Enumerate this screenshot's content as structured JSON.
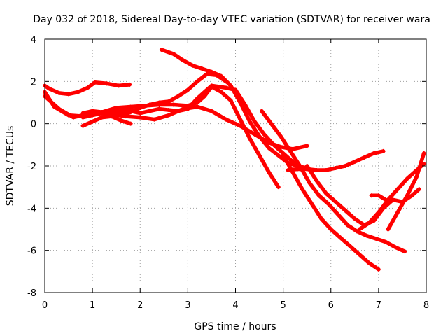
{
  "chart_data": {
    "type": "scatter",
    "title": "Day 032 of 2018, Sidereal Day-to-day VTEC variation (SDTVAR) for receiver wara",
    "xlabel": "GPS time / hours",
    "ylabel": "SDTVAR / TECUs",
    "xlim": [
      0,
      8
    ],
    "ylim": [
      -8,
      4
    ],
    "xticks": [
      "0",
      "1",
      "2",
      "3",
      "4",
      "5",
      "6",
      "7",
      "8"
    ],
    "yticks": [
      "-8",
      "-6",
      "-4",
      "-2",
      "0",
      "2",
      "4"
    ],
    "grid": true,
    "marker_color": "#ff0000",
    "series": [
      {
        "x": [
          0.0,
          0.1,
          0.3,
          0.5,
          0.7,
          0.9,
          1.05,
          1.3,
          1.55,
          1.78
        ],
        "y": [
          1.8,
          1.65,
          1.45,
          1.4,
          1.5,
          1.7,
          1.95,
          1.9,
          1.8,
          1.85
        ]
      },
      {
        "x": [
          0.0,
          0.2,
          0.5,
          0.8,
          1.1,
          1.4,
          1.7,
          2.0,
          2.3,
          2.6,
          2.9,
          3.2,
          3.5,
          3.8,
          4.1,
          4.4,
          4.7,
          4.95,
          5.2,
          5.5
        ],
        "y": [
          1.5,
          0.8,
          0.4,
          0.35,
          0.5,
          0.45,
          0.35,
          0.3,
          0.2,
          0.4,
          0.7,
          0.8,
          0.6,
          0.2,
          -0.1,
          -0.5,
          -0.9,
          -1.1,
          -1.2,
          -1.05
        ]
      },
      {
        "x": [
          0.0,
          0.3,
          0.6,
          0.9,
          1.2,
          1.5,
          1.8,
          2.1,
          2.4,
          2.7,
          3.0,
          3.2,
          3.35,
          3.5,
          3.7,
          3.9,
          4.1,
          4.3,
          4.5,
          4.7,
          4.9
        ],
        "y": [
          1.3,
          0.7,
          0.3,
          0.45,
          0.55,
          0.75,
          0.8,
          0.85,
          0.9,
          0.9,
          0.85,
          1.0,
          1.3,
          1.75,
          1.5,
          1.1,
          0.2,
          -0.7,
          -1.5,
          -2.3,
          -3.0
        ]
      },
      {
        "x": [
          0.8,
          1.0,
          1.2,
          1.4,
          1.6,
          1.8,
          2.0,
          2.2,
          2.4,
          2.6,
          2.8,
          3.0,
          3.2,
          3.4,
          3.5,
          3.8,
          4.0,
          4.2,
          4.4,
          4.6,
          4.8,
          5.0,
          5.2,
          5.4
        ],
        "y": [
          0.3,
          0.4,
          0.5,
          0.55,
          0.6,
          0.6,
          0.5,
          0.6,
          0.7,
          0.65,
          0.6,
          0.7,
          1.2,
          1.6,
          1.8,
          1.7,
          1.6,
          0.9,
          0.1,
          -0.5,
          -1.0,
          -1.4,
          -1.8,
          -2.2
        ]
      },
      {
        "x": [
          0.8,
          1.0,
          1.2,
          1.4,
          1.6,
          1.8,
          2.0,
          2.2,
          2.4,
          2.6,
          2.8,
          3.0,
          3.2,
          3.4,
          3.6,
          3.8
        ],
        "y": [
          -0.1,
          0.1,
          0.3,
          0.35,
          0.4,
          0.55,
          0.75,
          0.9,
          1.0,
          1.05,
          1.3,
          1.6,
          2.0,
          2.35,
          2.3,
          2.0
        ]
      },
      {
        "x": [
          0.8,
          1.0,
          1.2,
          1.4,
          1.6,
          1.8
        ],
        "y": [
          0.5,
          0.6,
          0.55,
          0.35,
          0.15,
          0.0
        ]
      },
      {
        "x": [
          2.45,
          2.7,
          2.9,
          3.1,
          3.3,
          3.5,
          3.7,
          3.9,
          4.1,
          4.3,
          4.5,
          4.7,
          4.9,
          5.1,
          5.3,
          5.5
        ],
        "y": [
          3.5,
          3.3,
          3.0,
          2.75,
          2.6,
          2.45,
          2.25,
          1.8,
          1.0,
          0.1,
          -0.6,
          -1.15,
          -1.5,
          -1.85,
          -2.0,
          -2.1
        ]
      },
      {
        "x": [
          5.1,
          5.3,
          5.5,
          5.7,
          5.9,
          6.1,
          6.3,
          6.5,
          6.7,
          6.9,
          7.1
        ],
        "y": [
          -2.2,
          -2.15,
          -2.15,
          -2.2,
          -2.2,
          -2.1,
          -2.0,
          -1.8,
          -1.6,
          -1.4,
          -1.3
        ]
      },
      {
        "x": [
          4.55,
          4.75,
          4.95,
          5.15,
          5.35,
          5.55,
          5.75,
          5.95,
          6.15,
          6.35,
          6.55,
          6.75,
          6.95,
          7.15,
          7.35,
          7.55
        ],
        "y": [
          0.6,
          0.0,
          -0.6,
          -1.3,
          -2.0,
          -2.8,
          -3.4,
          -3.8,
          -4.3,
          -4.8,
          -5.1,
          -5.3,
          -5.45,
          -5.6,
          -5.85,
          -6.05
        ]
      },
      {
        "x": [
          5.0,
          5.2,
          5.4,
          5.6,
          5.8,
          6.0,
          6.2,
          6.4,
          6.6,
          6.8,
          7.0
        ],
        "y": [
          -1.5,
          -2.3,
          -3.1,
          -3.8,
          -4.5,
          -5.0,
          -5.4,
          -5.8,
          -6.2,
          -6.6,
          -6.9
        ]
      },
      {
        "x": [
          5.5,
          5.7,
          5.9,
          6.1,
          6.3,
          6.5,
          6.7,
          6.9,
          7.1,
          7.3,
          7.5,
          7.7,
          7.85
        ],
        "y": [
          -2.0,
          -2.7,
          -3.3,
          -3.7,
          -4.1,
          -4.5,
          -4.8,
          -4.6,
          -4.0,
          -3.6,
          -3.7,
          -3.4,
          -3.1
        ]
      },
      {
        "x": [
          7.2,
          7.4,
          7.6,
          7.8,
          7.95
        ],
        "y": [
          -5.0,
          -4.2,
          -3.4,
          -2.5,
          -1.4
        ]
      },
      {
        "x": [
          6.6,
          6.8,
          7.0,
          7.2,
          7.4,
          7.6,
          7.8,
          7.95
        ],
        "y": [
          -5.0,
          -4.7,
          -4.2,
          -3.6,
          -3.1,
          -2.6,
          -2.2,
          -1.9
        ]
      },
      {
        "x": [
          6.85,
          7.0,
          7.15
        ],
        "y": [
          -3.4,
          -3.4,
          -3.6
        ]
      }
    ]
  }
}
